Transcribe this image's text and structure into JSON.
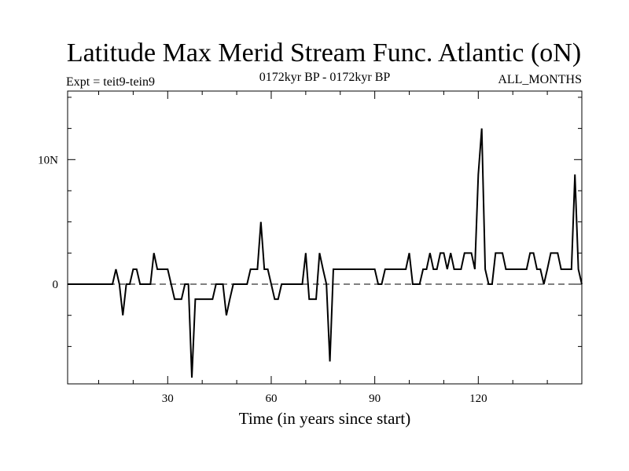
{
  "chart_data": {
    "type": "line",
    "title": "Latitude Max Merid Stream Func. Atlantic (oN)",
    "subtitle_left": "Expt = teit9-tein9",
    "subtitle_center": "0172kyr BP - 0172kyr BP",
    "subtitle_right": "ALL_MONTHS",
    "xlabel": "Time (in years since start)",
    "ylabel": "",
    "xlim": [
      1,
      150
    ],
    "ylim": [
      -8,
      15.5
    ],
    "xticks": [
      30,
      60,
      90,
      120
    ],
    "xtick_labels": [
      "30",
      "60",
      "90",
      "120"
    ],
    "yticks": [
      0,
      10
    ],
    "ytick_labels": [
      "0",
      "10N"
    ],
    "zero_line": "dashed",
    "series": [
      {
        "name": "Latitude Max Merid Stream Func.",
        "x": [
          1,
          2,
          3,
          4,
          5,
          6,
          7,
          8,
          9,
          10,
          11,
          12,
          13,
          14,
          15,
          16,
          17,
          18,
          19,
          20,
          21,
          22,
          23,
          24,
          25,
          26,
          27,
          28,
          29,
          30,
          31,
          32,
          33,
          34,
          35,
          36,
          37,
          38,
          39,
          40,
          41,
          42,
          43,
          44,
          45,
          46,
          47,
          48,
          49,
          50,
          51,
          52,
          53,
          54,
          55,
          56,
          57,
          58,
          59,
          60,
          61,
          62,
          63,
          64,
          65,
          66,
          67,
          68,
          69,
          70,
          71,
          72,
          73,
          74,
          75,
          76,
          77,
          78,
          79,
          80,
          81,
          82,
          83,
          84,
          85,
          86,
          87,
          88,
          89,
          90,
          91,
          92,
          93,
          94,
          95,
          96,
          97,
          98,
          99,
          100,
          101,
          102,
          103,
          104,
          105,
          106,
          107,
          108,
          109,
          110,
          111,
          112,
          113,
          114,
          115,
          116,
          117,
          118,
          119,
          120,
          121,
          122,
          123,
          124,
          125,
          126,
          127,
          128,
          129,
          130,
          131,
          132,
          133,
          134,
          135,
          136,
          137,
          138,
          139,
          140,
          141,
          142,
          143,
          144,
          145,
          146,
          147,
          148,
          149,
          150
        ],
        "y": [
          0,
          0,
          0,
          0,
          0,
          0,
          0,
          0,
          0,
          0,
          0,
          0,
          0,
          0,
          1.2,
          0,
          -2.5,
          0,
          0,
          1.2,
          1.2,
          0,
          0,
          0,
          0,
          2.5,
          1.2,
          1.2,
          1.2,
          1.2,
          0,
          -1.2,
          -1.2,
          -1.2,
          0,
          0,
          -7.5,
          -1.2,
          -1.2,
          -1.2,
          -1.2,
          -1.2,
          -1.2,
          0,
          0,
          0,
          -2.5,
          -1.2,
          0,
          0,
          0,
          0,
          0,
          1.2,
          1.2,
          1.2,
          5,
          1.2,
          1.2,
          0,
          -1.2,
          -1.2,
          0,
          0,
          0,
          0,
          0,
          0,
          0,
          2.5,
          -1.2,
          -1.2,
          -1.2,
          2.5,
          1.2,
          0,
          -6.2,
          1.2,
          1.2,
          1.2,
          1.2,
          1.2,
          1.2,
          1.2,
          1.2,
          1.2,
          1.2,
          1.2,
          1.2,
          1.2,
          0,
          0,
          1.2,
          1.2,
          1.2,
          1.2,
          1.2,
          1.2,
          1.2,
          2.5,
          0,
          0,
          0,
          1.2,
          1.2,
          2.5,
          1.2,
          1.2,
          2.5,
          2.5,
          1.2,
          2.5,
          1.2,
          1.2,
          1.2,
          2.5,
          2.5,
          2.5,
          1.2,
          8.8,
          12.5,
          1.2,
          0,
          0,
          2.5,
          2.5,
          2.5,
          1.2,
          1.2,
          1.2,
          1.2,
          1.2,
          1.2,
          1.2,
          2.5,
          2.5,
          1.2,
          1.2,
          0,
          1.2,
          2.5,
          2.5,
          2.5,
          1.2,
          1.2,
          1.2,
          1.2,
          8.8,
          1.2,
          0
        ]
      }
    ]
  }
}
